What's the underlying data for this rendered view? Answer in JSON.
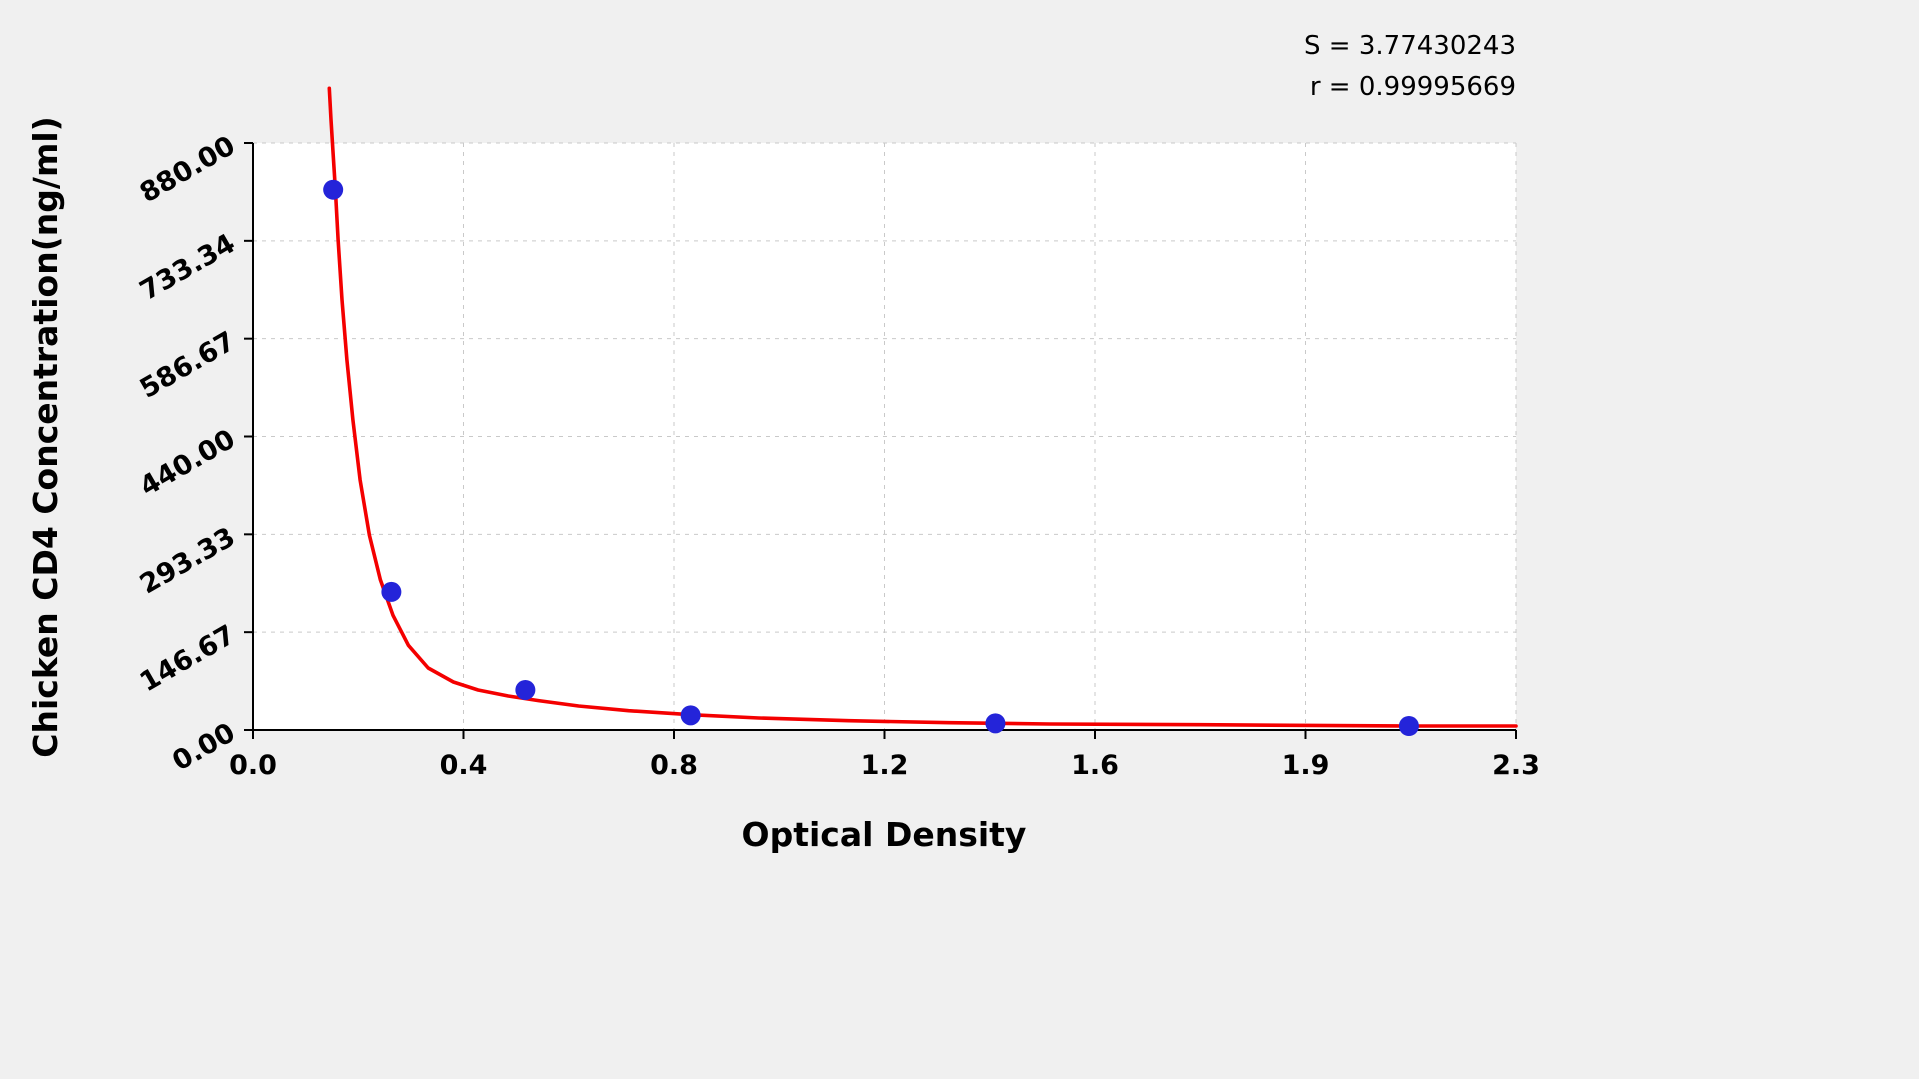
{
  "stats": {
    "s_label": "S = 3.77430243",
    "r_label": "r = 0.99995669"
  },
  "chart_data": {
    "type": "scatter",
    "title": "",
    "xlabel": "Optical Density",
    "ylabel": "Chicken CD4 Concentration(ng/ml)",
    "xlim": [
      0,
      2.3
    ],
    "ylim": [
      0,
      880
    ],
    "x_tick_labels": [
      "0.0",
      "0.4",
      "0.8",
      "1.2",
      "1.6",
      "1.9",
      "2.3"
    ],
    "y_tick_labels": [
      "0.00",
      "146.67",
      "293.33",
      "440.00",
      "586.67",
      "733.34",
      "880.00"
    ],
    "grid": "dashed",
    "legend": "none",
    "points": [
      {
        "od": 0.146,
        "conc": 810
      },
      {
        "od": 0.252,
        "conc": 207
      },
      {
        "od": 0.496,
        "conc": 60
      },
      {
        "od": 0.797,
        "conc": 22
      },
      {
        "od": 1.352,
        "conc": 10
      },
      {
        "od": 2.105,
        "conc": 6
      }
    ],
    "curve": [
      [
        0.139,
        962
      ],
      [
        0.142,
        915
      ],
      [
        0.146,
        862
      ],
      [
        0.15,
        810
      ],
      [
        0.155,
        735
      ],
      [
        0.162,
        645
      ],
      [
        0.171,
        555
      ],
      [
        0.182,
        465
      ],
      [
        0.195,
        375
      ],
      [
        0.212,
        292
      ],
      [
        0.232,
        225
      ],
      [
        0.255,
        172
      ],
      [
        0.283,
        127
      ],
      [
        0.319,
        93
      ],
      [
        0.365,
        72
      ],
      [
        0.41,
        60
      ],
      [
        0.465,
        51
      ],
      [
        0.52,
        44
      ],
      [
        0.593,
        36
      ],
      [
        0.684,
        29
      ],
      [
        0.797,
        23
      ],
      [
        0.921,
        18
      ],
      [
        1.085,
        14
      ],
      [
        1.268,
        11
      ],
      [
        1.45,
        9
      ],
      [
        1.724,
        8
      ],
      [
        2.089,
        6
      ],
      [
        2.3,
        6
      ]
    ],
    "colors": {
      "curve": "#f40000",
      "point": "#2424d9",
      "grid": "#c9c9c9",
      "axis": "#000000",
      "plot_bg": "#ffffff",
      "page_bg": "#f0f0f0"
    }
  }
}
